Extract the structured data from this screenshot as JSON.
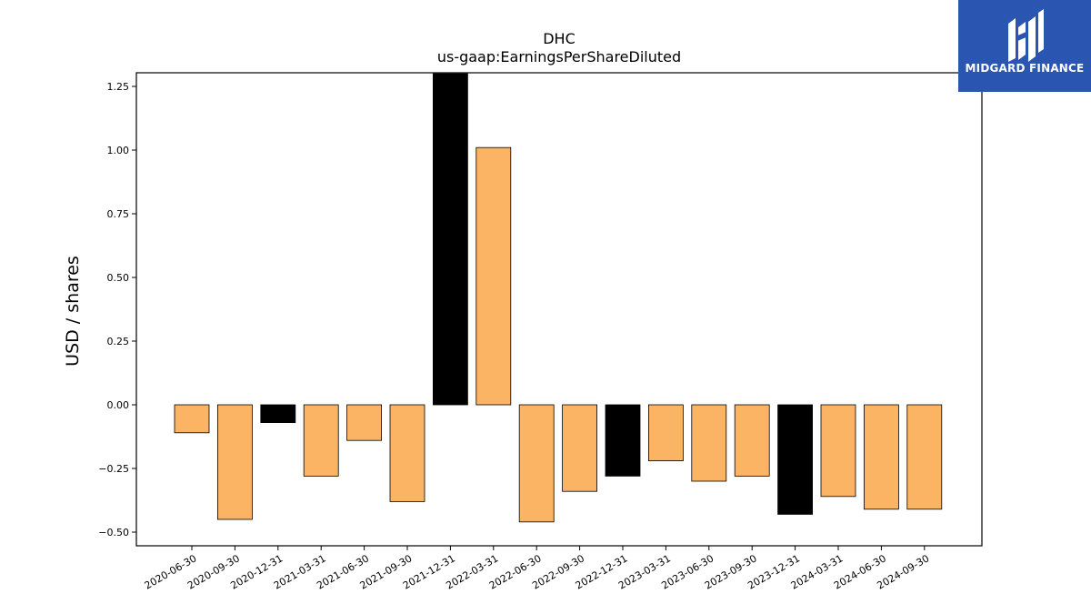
{
  "chart_data": {
    "type": "bar",
    "title": "DHC",
    "subtitle": "us-gaap:EarningsPerShareDiluted",
    "ylabel": "USD / shares",
    "xlabel": "",
    "ylim": [
      -0.56,
      1.3
    ],
    "yticks": [
      "1.25",
      "1.00",
      "0.75",
      "0.50",
      "0.25",
      "0.00",
      "−0.25",
      "−0.50"
    ],
    "ytick_values": [
      1.25,
      1.0,
      0.75,
      0.5,
      0.25,
      0.0,
      -0.25,
      -0.5
    ],
    "categories": [
      "2020-06-30",
      "2020-09-30",
      "2020-12-31",
      "2021-03-31",
      "2021-06-30",
      "2021-09-30",
      "2021-12-31",
      "2022-03-31",
      "2022-06-30",
      "2022-09-30",
      "2022-12-31",
      "2023-03-31",
      "2023-06-30",
      "2023-09-30",
      "2023-12-31",
      "2024-03-31",
      "2024-06-30",
      "2024-09-30"
    ],
    "values": [
      -0.11,
      -0.45,
      -0.07,
      -0.28,
      -0.14,
      -0.38,
      1.3,
      1.01,
      -0.46,
      -0.34,
      -0.28,
      -0.22,
      -0.3,
      -0.28,
      -0.43,
      -0.36,
      -0.41,
      -0.41
    ],
    "bar_colors": [
      "#fbb463",
      "#fbb463",
      "#000000",
      "#fbb463",
      "#fbb463",
      "#fbb463",
      "#000000",
      "#fbb463",
      "#fbb463",
      "#fbb463",
      "#000000",
      "#fbb463",
      "#fbb463",
      "#fbb463",
      "#000000",
      "#fbb463",
      "#fbb463",
      "#fbb463"
    ],
    "grid": false,
    "legend": "none"
  },
  "logo": {
    "text": "MIDGARD FINANCE",
    "background": "#2a55b0"
  }
}
